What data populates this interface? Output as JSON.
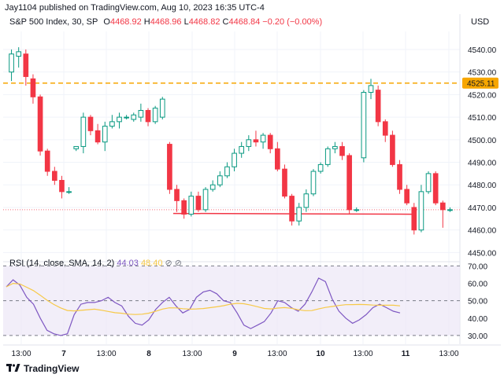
{
  "header": {
    "publish_line": "Jay1104 published on TradingView.com, Aug 10, 2023 16:35 UTC-4",
    "symbol_line": "S&P 500 Index, 30, SP",
    "open_label": "O",
    "open": "4468.92",
    "high_label": "H",
    "high": "4468.96",
    "low_label": "L",
    "low": "4468.82",
    "close_label": "C",
    "close": "4468.84",
    "change": "−0.20 (−0.00%)",
    "currency": "USD"
  },
  "rsi": {
    "label": "RSI (14, close, SMA, 14, 2)",
    "value": "44.03",
    "sma_value": "48.40",
    "levels": [
      70,
      50,
      30
    ],
    "ticks": [
      "70.00",
      "60.00",
      "50.00",
      "40.00",
      "30.00"
    ],
    "line_color": "#7e57c2",
    "sma_color": "#f7c948",
    "series": [
      58,
      62,
      59,
      52,
      48,
      40,
      33,
      31,
      30,
      31,
      42,
      48,
      49,
      49,
      50,
      52,
      49,
      47,
      41,
      37,
      36,
      39,
      45,
      49,
      52,
      47,
      43,
      45,
      52,
      55,
      56,
      54,
      50,
      49,
      43,
      36,
      34,
      36,
      38,
      43,
      50,
      49,
      46,
      44,
      48,
      55,
      63,
      61,
      51,
      44,
      40,
      37,
      39,
      42,
      46,
      48,
      46,
      44,
      43
    ]
  },
  "x_axis": {
    "labels": [
      "13:00",
      "7",
      "13:00",
      "8",
      "13:00",
      "9",
      "13:00",
      "10",
      "13:00",
      "11",
      "13:00"
    ]
  },
  "price_axis": {
    "ticks": [
      "4540.00",
      "4530.00",
      "4520.00",
      "4510.00",
      "4500.00",
      "4490.00",
      "4480.00",
      "4470.00",
      "4460.00",
      "4450.00"
    ],
    "highlight_label": "4525.11",
    "highlight_color": "#f7a600"
  },
  "colors": {
    "up": "#089981",
    "down": "#f23645",
    "support": "#f23645",
    "resistance": "#f7a600"
  },
  "chart_data": {
    "type": "candlestick",
    "title": "S&P 500 Index, 30, SP",
    "ylim": [
      4450,
      4545
    ],
    "resistance_level": 4525.11,
    "support_level": 4467,
    "candles": [
      {
        "o": 4530,
        "h": 4540,
        "l": 4526,
        "c": 4538
      },
      {
        "o": 4537,
        "h": 4541,
        "l": 4532,
        "c": 4539
      },
      {
        "o": 4538,
        "h": 4540,
        "l": 4524,
        "c": 4528
      },
      {
        "o": 4527,
        "h": 4529,
        "l": 4516,
        "c": 4519
      },
      {
        "o": 4519,
        "h": 4520,
        "l": 4493,
        "c": 4495
      },
      {
        "o": 4495,
        "h": 4496,
        "l": 4484,
        "c": 4486
      },
      {
        "o": 4486,
        "h": 4488,
        "l": 4480,
        "c": 4482
      },
      {
        "o": 4482,
        "h": 4484,
        "l": 4474,
        "c": 4477
      },
      {
        "o": 4477,
        "h": 4479,
        "l": 4476,
        "c": 4477
      },
      {
        "o": 4496,
        "h": 4497,
        "l": 4495,
        "c": 4497
      },
      {
        "o": 4497,
        "h": 4512,
        "l": 4494,
        "c": 4510
      },
      {
        "o": 4510,
        "h": 4511,
        "l": 4502,
        "c": 4504
      },
      {
        "o": 4504,
        "h": 4507,
        "l": 4498,
        "c": 4499
      },
      {
        "o": 4499,
        "h": 4508,
        "l": 4495,
        "c": 4506
      },
      {
        "o": 4506,
        "h": 4511,
        "l": 4505,
        "c": 4508
      },
      {
        "o": 4508,
        "h": 4512,
        "l": 4505,
        "c": 4510
      },
      {
        "o": 4510,
        "h": 4511,
        "l": 4509,
        "c": 4510
      },
      {
        "o": 4509,
        "h": 4512,
        "l": 4508,
        "c": 4511
      },
      {
        "o": 4510,
        "h": 4516,
        "l": 4508,
        "c": 4513
      },
      {
        "o": 4513,
        "h": 4514,
        "l": 4506,
        "c": 4508
      },
      {
        "o": 4508,
        "h": 4515,
        "l": 4507,
        "c": 4514
      },
      {
        "o": 4510,
        "h": 4519,
        "l": 4509,
        "c": 4518
      },
      {
        "o": 4498,
        "h": 4499,
        "l": 4476,
        "c": 4478
      },
      {
        "o": 4478,
        "h": 4480,
        "l": 4468,
        "c": 4473
      },
      {
        "o": 4473,
        "h": 4474,
        "l": 4465,
        "c": 4467
      },
      {
        "o": 4467,
        "h": 4477,
        "l": 4466,
        "c": 4475
      },
      {
        "o": 4475,
        "h": 4477,
        "l": 4468,
        "c": 4469
      },
      {
        "o": 4469,
        "h": 4479,
        "l": 4468,
        "c": 4478
      },
      {
        "o": 4478,
        "h": 4482,
        "l": 4477,
        "c": 4480
      },
      {
        "o": 4480,
        "h": 4486,
        "l": 4479,
        "c": 4484
      },
      {
        "o": 4484,
        "h": 4490,
        "l": 4483,
        "c": 4488
      },
      {
        "o": 4488,
        "h": 4496,
        "l": 4486,
        "c": 4494
      },
      {
        "o": 4494,
        "h": 4499,
        "l": 4492,
        "c": 4497
      },
      {
        "o": 4497,
        "h": 4502,
        "l": 4495,
        "c": 4500
      },
      {
        "o": 4500,
        "h": 4504,
        "l": 4497,
        "c": 4499
      },
      {
        "o": 4499,
        "h": 4503,
        "l": 4496,
        "c": 4502
      },
      {
        "o": 4502,
        "h": 4503,
        "l": 4494,
        "c": 4496
      },
      {
        "o": 4496,
        "h": 4499,
        "l": 4486,
        "c": 4487
      },
      {
        "o": 4487,
        "h": 4489,
        "l": 4474,
        "c": 4475
      },
      {
        "o": 4475,
        "h": 4476,
        "l": 4462,
        "c": 4464
      },
      {
        "o": 4464,
        "h": 4472,
        "l": 4462,
        "c": 4470
      },
      {
        "o": 4470,
        "h": 4478,
        "l": 4468,
        "c": 4476
      },
      {
        "o": 4476,
        "h": 4487,
        "l": 4475,
        "c": 4486
      },
      {
        "o": 4486,
        "h": 4490,
        "l": 4485,
        "c": 4489
      },
      {
        "o": 4489,
        "h": 4497,
        "l": 4488,
        "c": 4496
      },
      {
        "o": 4496,
        "h": 4499,
        "l": 4494,
        "c": 4497
      },
      {
        "o": 4497,
        "h": 4499,
        "l": 4491,
        "c": 4493
      },
      {
        "o": 4493,
        "h": 4494,
        "l": 4467,
        "c": 4469
      },
      {
        "o": 4469,
        "h": 4470,
        "l": 4468,
        "c": 4469
      },
      {
        "o": 4492,
        "h": 4522,
        "l": 4490,
        "c": 4521
      },
      {
        "o": 4521,
        "h": 4527,
        "l": 4518,
        "c": 4524
      },
      {
        "o": 4522,
        "h": 4524,
        "l": 4506,
        "c": 4508
      },
      {
        "o": 4508,
        "h": 4509,
        "l": 4499,
        "c": 4502
      },
      {
        "o": 4502,
        "h": 4504,
        "l": 4488,
        "c": 4489
      },
      {
        "o": 4489,
        "h": 4491,
        "l": 4476,
        "c": 4478
      },
      {
        "o": 4478,
        "h": 4480,
        "l": 4471,
        "c": 4472
      },
      {
        "o": 4470,
        "h": 4472,
        "l": 4458,
        "c": 4460
      },
      {
        "o": 4460,
        "h": 4480,
        "l": 4459,
        "c": 4477
      },
      {
        "o": 4477,
        "h": 4486,
        "l": 4476,
        "c": 4485
      },
      {
        "o": 4485,
        "h": 4486,
        "l": 4471,
        "c": 4472
      },
      {
        "o": 4472,
        "h": 4473,
        "l": 4461,
        "c": 4469
      },
      {
        "o": 4469,
        "h": 4470,
        "l": 4468,
        "c": 4469
      }
    ]
  }
}
